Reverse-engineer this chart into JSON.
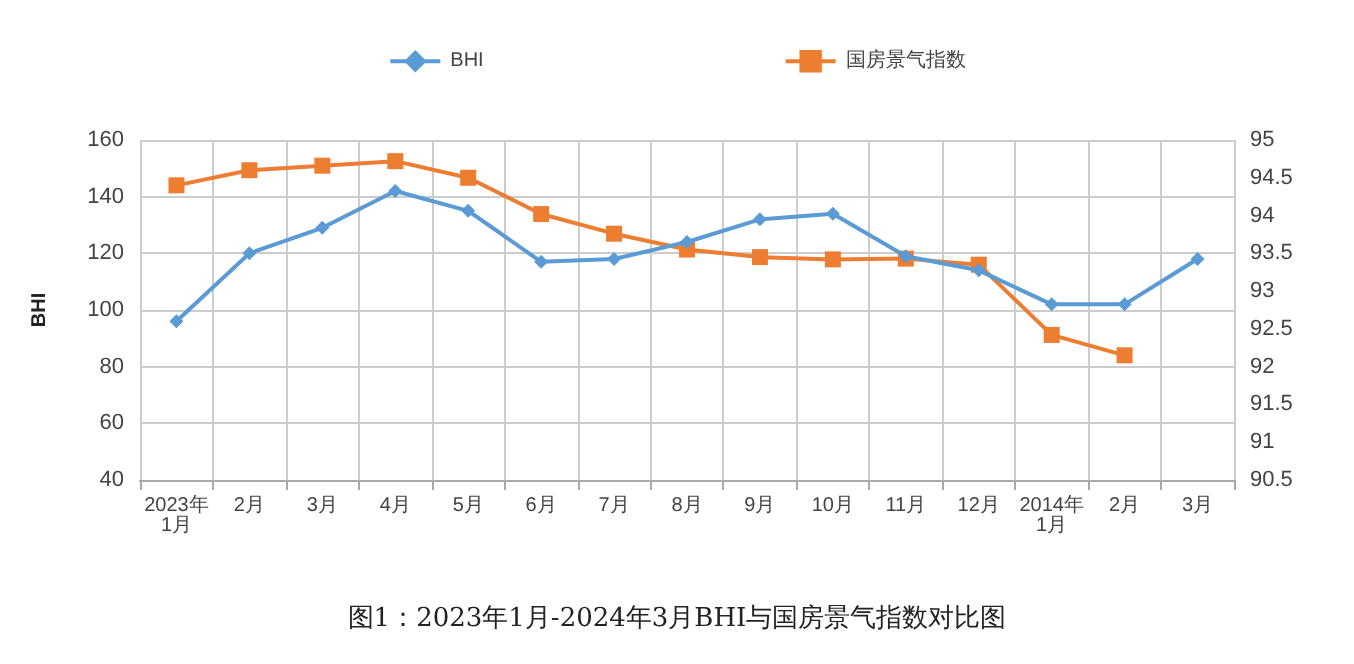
{
  "chart_data": {
    "type": "line",
    "ylabel": "BHI",
    "annotations": [
      "图1：2023年1月-2024年3月BHI与国房景气指数对比图"
    ],
    "categories": [
      "2023年\n1月",
      "2月",
      "3月",
      "4月",
      "5月",
      "6月",
      "7月",
      "8月",
      "9月",
      "10月",
      "11月",
      "12月",
      "2014年\n1月",
      "2月",
      "3月"
    ],
    "series": [
      {
        "name": "BHI",
        "color": "#5b9bd5",
        "marker": "diamond",
        "values": [
          96,
          120,
          129,
          142,
          135,
          117,
          118,
          124,
          132,
          134,
          119,
          114,
          102,
          102,
          118
        ]
      },
      {
        "name": "国房景气指数",
        "color": "#ed7d31",
        "marker": "square",
        "axis": "y2",
        "values": [
          94.4,
          94.6,
          94.66,
          94.72,
          94.5,
          94.02,
          93.76,
          93.55,
          93.45,
          93.42,
          93.43,
          93.35,
          92.42,
          92.15,
          null
        ]
      }
    ],
    "ylim": [
      40,
      160
    ],
    "yticks": [
      40,
      60,
      80,
      100,
      120,
      140,
      160
    ],
    "y2lim": [
      90.5,
      95
    ],
    "y2ticks": [
      90.5,
      91,
      91.5,
      92,
      92.5,
      93,
      93.5,
      94,
      94.5,
      95
    ],
    "grid": true,
    "legend": "top"
  }
}
